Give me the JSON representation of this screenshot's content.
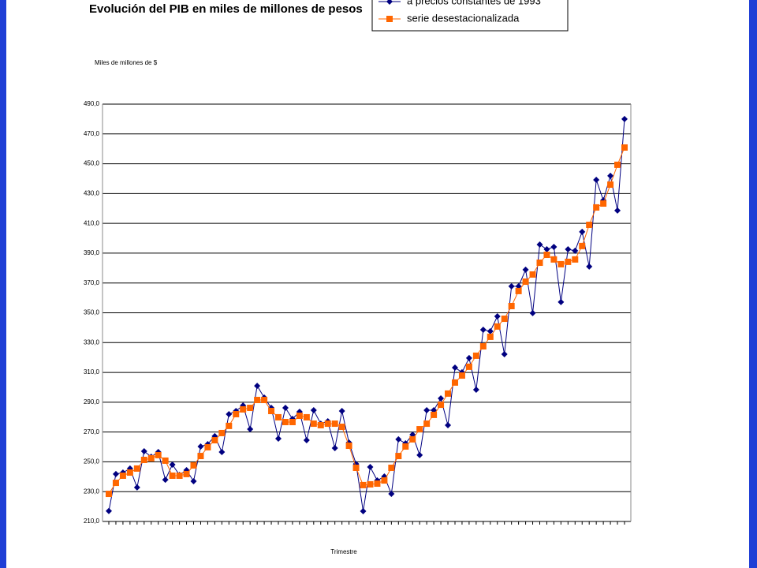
{
  "chart_data": {
    "type": "line",
    "title": "Evolución del PIB en miles de millones de pesos",
    "y_label": "Miles de millones de $",
    "x_label": "Trimestre",
    "categories": [
      null,
      null,
      null,
      null,
      null,
      null,
      null,
      null,
      null,
      null,
      null,
      null,
      null,
      null,
      null,
      null,
      null,
      null,
      null,
      null,
      null,
      null,
      null,
      null,
      null,
      null,
      null,
      null,
      null,
      null,
      null,
      null,
      null,
      null,
      null,
      null,
      null,
      null,
      null,
      null,
      null,
      null,
      null,
      null,
      null,
      null,
      null,
      null,
      null,
      null,
      null,
      null,
      null,
      null,
      null,
      null,
      null,
      null,
      null,
      null,
      null,
      null,
      null,
      null,
      null,
      null,
      null,
      null,
      null,
      null,
      null,
      null,
      null,
      null
    ],
    "series": [
      {
        "name": "a precios constantes de 1993",
        "color": "#000080",
        "marker": "diamond",
        "values": [
          217,
          241.8,
          242.8,
          245.5,
          232.8,
          257.1,
          253.4,
          256.6,
          238,
          248.1,
          241.2,
          244.4,
          237,
          260.3,
          261.9,
          267.2,
          256.6,
          282,
          284.1,
          287.8,
          271.9,
          301,
          293.1,
          286.2,
          265.6,
          286.2,
          278.8,
          283.6,
          264.5,
          284.6,
          275.6,
          277.2,
          259.2,
          284.1,
          262.9,
          248.6,
          216.9,
          246.5,
          237.5,
          240.2,
          228.5,
          265.1,
          262.4,
          268.2,
          254.5,
          284.6,
          284.6,
          292.6,
          274.6,
          313.2,
          310.1,
          319.6,
          298.4,
          338.6,
          337.6,
          347.6,
          322.2,
          367.8,
          367.8,
          378.9,
          349.8,
          395.8,
          392.6,
          394.2,
          357.2,
          392.6,
          391.6,
          404.3,
          381,
          439.2,
          425.5,
          441.9,
          418.6,
          480
        ]
      },
      {
        "name": "serie desestacionalizada",
        "color": "#ff6600",
        "marker": "square",
        "values": [
          228.5,
          235.9,
          240.7,
          242.8,
          245.5,
          251.3,
          252.4,
          254.5,
          250.8,
          240.7,
          240.7,
          241.8,
          247.6,
          253.9,
          259.8,
          264.5,
          269.3,
          274.1,
          282,
          285.2,
          286.2,
          291.5,
          291.5,
          284.1,
          279.9,
          276.7,
          276.7,
          280.9,
          279.9,
          275.6,
          274.6,
          275.6,
          275.6,
          273.5,
          260.8,
          246,
          234.4,
          234.9,
          235.4,
          237.5,
          246,
          253.9,
          260.3,
          265.1,
          271.9,
          275.6,
          281.5,
          288.3,
          295.8,
          303.2,
          307.9,
          313.8,
          321.2,
          327.5,
          333.9,
          340.8,
          346,
          354.5,
          364.6,
          370.9,
          375.7,
          383.6,
          388.9,
          385.8,
          382.6,
          384.2,
          385.8,
          394.8,
          409,
          420.7,
          423.3,
          436,
          449.3,
          460.9
        ]
      }
    ],
    "ylim": [
      210,
      490
    ],
    "yticks": [
      {
        "value": 210,
        "label": "210,0"
      },
      {
        "value": 230,
        "label": "230,0"
      },
      {
        "value": 250,
        "label": "250,0"
      },
      {
        "value": 270,
        "label": "270,0"
      },
      {
        "value": 290,
        "label": "290,0"
      },
      {
        "value": 310,
        "label": "310,0"
      },
      {
        "value": 330,
        "label": "330,0"
      },
      {
        "value": 350,
        "label": "350,0"
      },
      {
        "value": 370,
        "label": "370,0"
      },
      {
        "value": 390,
        "label": "390,0"
      },
      {
        "value": 410,
        "label": "410,0"
      },
      {
        "value": 430,
        "label": "430,0"
      },
      {
        "value": 450,
        "label": "450,0"
      },
      {
        "value": 470,
        "label": "470,0"
      },
      {
        "value": 490,
        "label": "490,0"
      }
    ],
    "grid": true
  }
}
